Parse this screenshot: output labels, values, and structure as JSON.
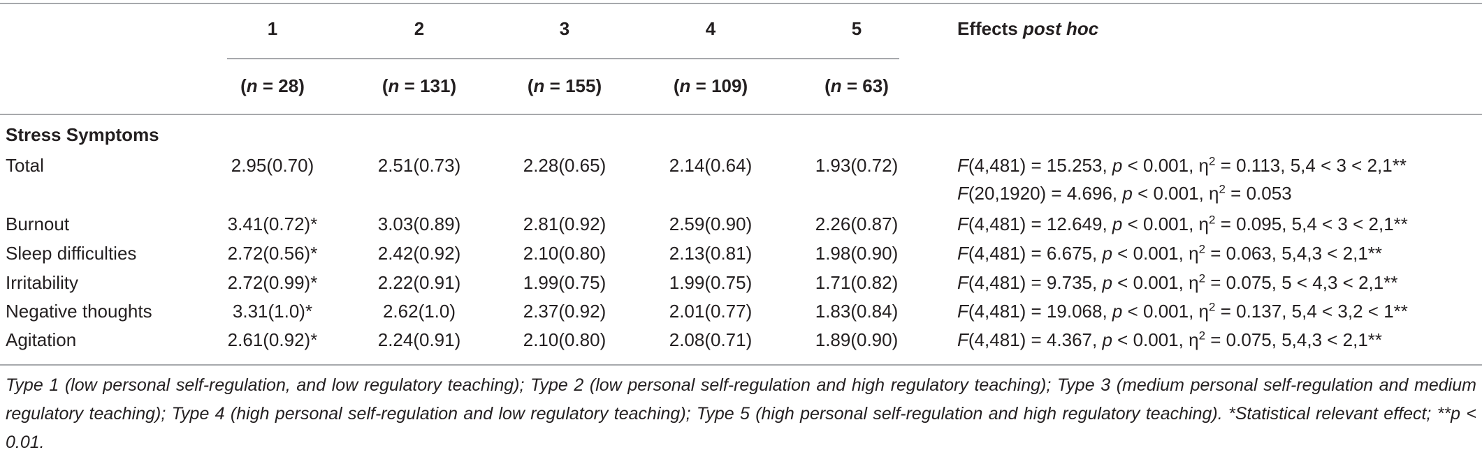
{
  "header": {
    "columns": [
      "1",
      "2",
      "3",
      "4",
      "5"
    ],
    "ns": [
      "28",
      "131",
      "155",
      "109",
      "63"
    ],
    "effects_prefix": "Effects",
    "effects_italic": "post hoc"
  },
  "section_title": "Stress Symptoms",
  "rows": [
    {
      "label": "Total",
      "values": [
        "2.95(0.70)",
        "2.51(0.73)",
        "2.28(0.65)",
        "2.14(0.64)",
        "1.93(0.72)"
      ],
      "stats": [
        {
          "df": "(4,481)",
          "f": "15.253",
          "p": "0.001",
          "eta": "0.113",
          "order": ", 5,4 < 3 < 2,1**"
        },
        {
          "df": "(20,1920)",
          "f": "4.696",
          "p": "0.001",
          "eta": "0.053",
          "order": ""
        }
      ]
    },
    {
      "label": "Burnout",
      "values": [
        "3.41(0.72)*",
        "3.03(0.89)",
        "2.81(0.92)",
        "2.59(0.90)",
        "2.26(0.87)"
      ],
      "stats": [
        {
          "df": "(4,481)",
          "f": "12.649",
          "p": "0.001",
          "eta": "0.095",
          "order": ", 5,4 < 3 < 2,1**"
        }
      ]
    },
    {
      "label": "Sleep difficulties",
      "values": [
        "2.72(0.56)*",
        "2.42(0.92)",
        "2.10(0.80)",
        "2.13(0.81)",
        "1.98(0.90)"
      ],
      "stats": [
        {
          "df": "(4,481)",
          "f": "6.675",
          "p": "0.001",
          "eta": "0.063",
          "order": ", 5,4,3 < 2,1**"
        }
      ]
    },
    {
      "label": "Irritability",
      "values": [
        "2.72(0.99)*",
        "2.22(0.91)",
        "1.99(0.75)",
        "1.99(0.75)",
        "1.71(0.82)"
      ],
      "stats": [
        {
          "df": "(4,481)",
          "f": "9.735",
          "p": "0.001",
          "eta": "0.075",
          "order": ", 5 < 4,3 < 2,1**"
        }
      ]
    },
    {
      "label": "Negative thoughts",
      "values": [
        "3.31(1.0)*",
        "2.62(1.0)",
        "2.37(0.92)",
        "2.01(0.77)",
        "1.83(0.84)"
      ],
      "stats": [
        {
          "df": "(4,481)",
          "f": "19.068",
          "p": "0.001",
          "eta": "0.137",
          "order": ", 5,4 < 3,2 < 1**"
        }
      ]
    },
    {
      "label": "Agitation",
      "values": [
        "2.61(0.92)*",
        "2.24(0.91)",
        "2.10(0.80)",
        "2.08(0.71)",
        "1.89(0.90)"
      ],
      "stats": [
        {
          "df": "(4,481)",
          "f": "4.367",
          "p": "0.001",
          "eta": "0.075",
          "order": ", 5,4,3 < 2,1**"
        }
      ]
    }
  ],
  "footnote": "Type 1 (low personal self-regulation, and low regulatory teaching); Type 2 (low personal self-regulation and high regulatory teaching); Type 3 (medium personal self-regulation and medium regulatory teaching); Type 4 (high personal self-regulation and low regulatory teaching); Type 5 (high personal self-regulation and high regulatory teaching). *Statistical relevant effect; **p < 0.01."
}
